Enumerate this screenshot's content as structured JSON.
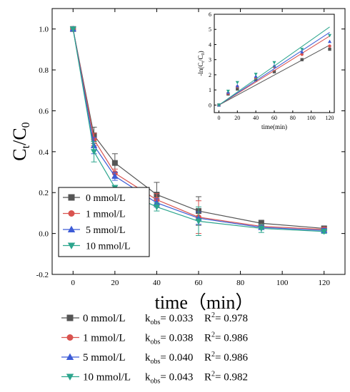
{
  "chart_data": [
    {
      "type": "line",
      "ylabel_main": "C",
      "ylabel_sub1": "t",
      "ylabel_mid": "/C",
      "ylabel_sub2": "0",
      "xlabel": "time（min）",
      "xlim": [
        -10,
        130
      ],
      "ylim": [
        -0.2,
        1.1
      ],
      "x_ticks": [
        0,
        20,
        40,
        60,
        80,
        100,
        120
      ],
      "y_ticks": [
        "-0.2",
        "0.0",
        "0.2",
        "0.4",
        "0.6",
        "0.8",
        "1.0"
      ],
      "legend_position": "bottom-left",
      "series": [
        {
          "name": "0 mmol/L",
          "color": "#555555",
          "marker": "square",
          "x": [
            0,
            10,
            20,
            40,
            60,
            90,
            120
          ],
          "y": [
            1.0,
            0.48,
            0.345,
            0.19,
            0.11,
            0.05,
            0.025
          ],
          "err": [
            0.0,
            0.04,
            0.045,
            0.06,
            0.07,
            0.015,
            0.01
          ]
        },
        {
          "name": "1 mmol/L",
          "color": "#d9534f",
          "marker": "circle",
          "x": [
            0,
            10,
            20,
            40,
            60,
            90,
            120
          ],
          "y": [
            1.0,
            0.46,
            0.295,
            0.165,
            0.08,
            0.035,
            0.02
          ],
          "err": [
            0.0,
            0.03,
            0.02,
            0.03,
            0.08,
            0.01,
            0.01
          ]
        },
        {
          "name": "5 mmol/L",
          "color": "#3c5bd6",
          "marker": "triangle-up",
          "x": [
            0,
            10,
            20,
            40,
            60,
            90,
            120
          ],
          "y": [
            1.0,
            0.43,
            0.28,
            0.15,
            0.075,
            0.03,
            0.015
          ],
          "err": [
            0.0,
            0.04,
            0.02,
            0.02,
            0.03,
            0.01,
            0.01
          ]
        },
        {
          "name": "10 mmol/L",
          "color": "#2ca58d",
          "marker": "triangle-down",
          "x": [
            0,
            10,
            20,
            40,
            60,
            90,
            120
          ],
          "y": [
            1.0,
            0.4,
            0.225,
            0.13,
            0.06,
            0.025,
            0.01
          ],
          "err": [
            0.0,
            0.05,
            0.01,
            0.02,
            0.07,
            0.02,
            0.01
          ]
        }
      ]
    },
    {
      "type": "scatter",
      "xlabel": "time(min)",
      "ylabel": "-ln(C",
      "ylabel_sub1": "t",
      "ylabel_mid": "/C",
      "ylabel_sub2": "0",
      "ylabel_end": ")",
      "xlim": [
        -5,
        125
      ],
      "ylim": [
        -0.5,
        6
      ],
      "x_ticks": [
        0,
        20,
        40,
        60,
        80,
        100,
        120
      ],
      "y_ticks": [
        0,
        1,
        2,
        3,
        4,
        5,
        6
      ],
      "series": [
        {
          "name": "0 mmol/L",
          "color": "#555555",
          "marker": "square",
          "x": [
            0,
            10,
            20,
            40,
            60,
            90,
            120
          ],
          "y": [
            0,
            0.73,
            1.06,
            1.66,
            2.2,
            3.0,
            3.69
          ],
          "fit": {
            "slope": 0.033,
            "intercept": 0
          }
        },
        {
          "name": "1 mmol/L",
          "color": "#d9534f",
          "marker": "circle",
          "x": [
            0,
            10,
            20,
            40,
            60,
            90,
            120
          ],
          "y": [
            0,
            0.78,
            1.22,
            1.8,
            2.53,
            3.35,
            3.9
          ],
          "fit": {
            "slope": 0.038,
            "intercept": 0
          }
        },
        {
          "name": "5 mmol/L",
          "color": "#3c5bd6",
          "marker": "triangle-up",
          "x": [
            0,
            10,
            20,
            40,
            60,
            90,
            120
          ],
          "y": [
            0,
            0.84,
            1.27,
            1.9,
            2.59,
            3.51,
            4.2
          ],
          "fit": {
            "slope": 0.04,
            "intercept": 0
          }
        },
        {
          "name": "10 mmol/L",
          "color": "#2ca58d",
          "marker": "triangle-down",
          "x": [
            0,
            10,
            20,
            40,
            60,
            90,
            120
          ],
          "y": [
            0,
            0.92,
            1.49,
            2.04,
            2.81,
            3.69,
            4.6
          ],
          "fit": {
            "slope": 0.043,
            "intercept": 0
          }
        }
      ]
    }
  ],
  "inset_legend_note": "",
  "stats_legend": [
    {
      "label": "0 mmol/L",
      "k_pre": "k",
      "k_sub": "obs",
      "k_val": "= 0.033",
      "r_pre": "R",
      "r_sup": "2",
      "r_val": "= 0.978",
      "color": "#555555",
      "marker": "square"
    },
    {
      "label": "1 mmol/L",
      "k_pre": "k",
      "k_sub": "obs",
      "k_val": "= 0.038",
      "r_pre": "R",
      "r_sup": "2",
      "r_val": "= 0.986",
      "color": "#d9534f",
      "marker": "circle"
    },
    {
      "label": "5 mmol/L",
      "k_pre": "k",
      "k_sub": "obs",
      "k_val": "= 0.040",
      "r_pre": "R",
      "r_sup": "2",
      "r_val": "= 0.986",
      "color": "#3c5bd6",
      "marker": "triangle-up"
    },
    {
      "label": "10 mmol/L",
      "k_pre": "k",
      "k_sub": "obs",
      "k_val": "= 0.043",
      "r_pre": "R",
      "r_sup": "2",
      "r_val": "= 0.982",
      "color": "#2ca58d",
      "marker": "triangle-down"
    }
  ]
}
